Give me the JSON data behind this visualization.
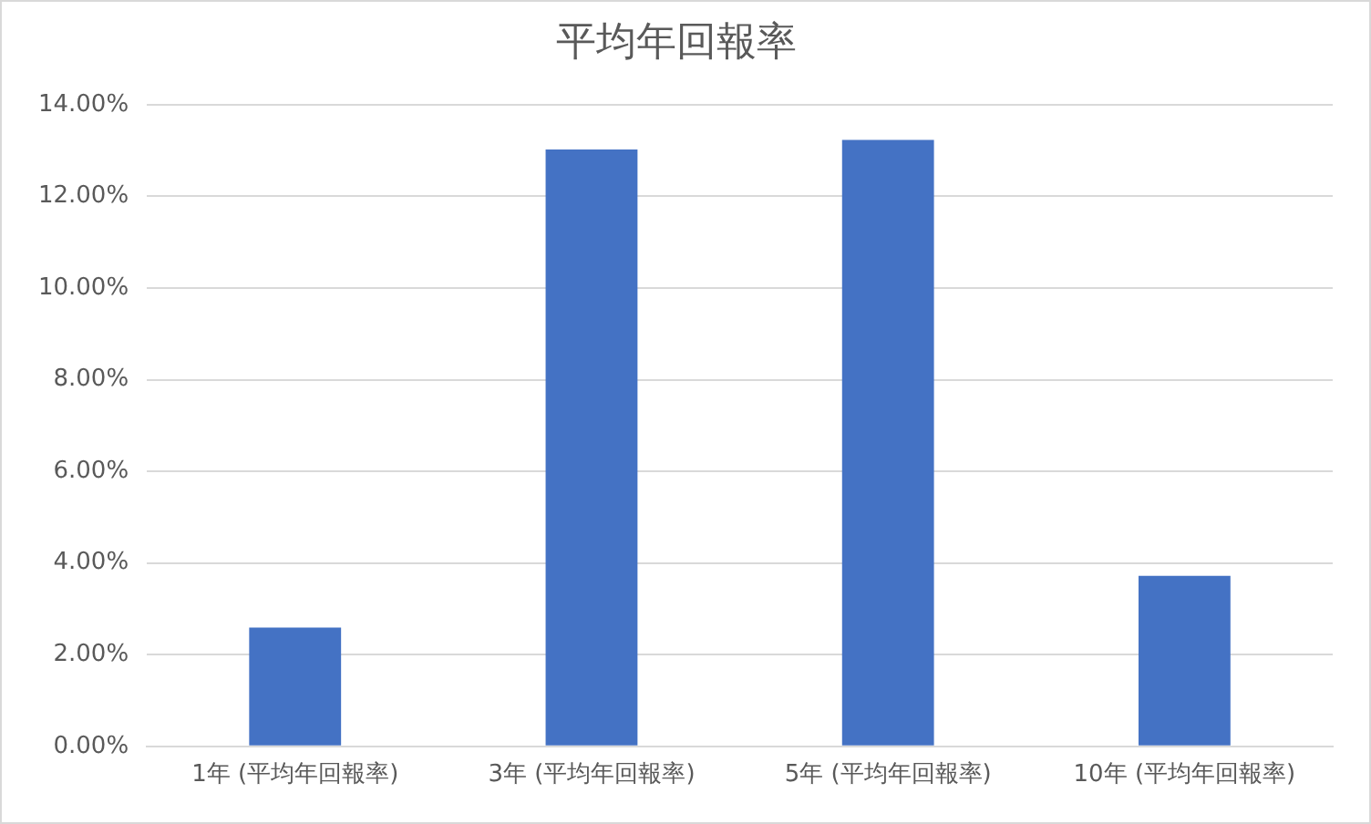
{
  "chart_data": {
    "type": "bar",
    "title": "平均年回報率",
    "categories": [
      "1年 (平均年回報率)",
      "3年 (平均年回報率)",
      "5年 (平均年回報率)",
      "10年 (平均年回報率)"
    ],
    "series": [
      {
        "color": "#4472c4",
        "values": [
          2.59,
          13.02,
          13.23,
          3.72
        ]
      }
    ],
    "ylim": [
      0,
      14
    ],
    "yticks": [
      {
        "value": 0,
        "label": "0.00%"
      },
      {
        "value": 2,
        "label": "2.00%"
      },
      {
        "value": 4,
        "label": "4.00%"
      },
      {
        "value": 6,
        "label": "6.00%"
      },
      {
        "value": 8,
        "label": "8.00%"
      },
      {
        "value": 10,
        "label": "10.00%"
      },
      {
        "value": 12,
        "label": "12.00%"
      },
      {
        "value": 14,
        "label": "14.00%"
      }
    ],
    "grid": "y",
    "legend": false
  }
}
